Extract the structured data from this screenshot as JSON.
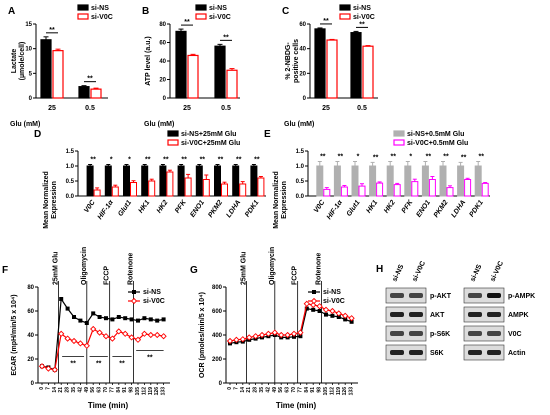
{
  "panels": {
    "A": {
      "label": "A",
      "type": "bar",
      "ylabel_lines": [
        "Lactate",
        "(µmole/cell)"
      ],
      "xlabel": "Glu (mM)",
      "categories": [
        "25",
        "0.5"
      ],
      "ylim": [
        0,
        15
      ],
      "yticks": [
        0,
        5,
        10,
        15
      ],
      "series": [
        {
          "name": "si-NS",
          "values": [
            11.8,
            2.3
          ],
          "err": [
            0.6,
            0.2
          ],
          "color": "#000000"
        },
        {
          "name": "si-V0C",
          "values": [
            9.6,
            1.8
          ],
          "err": [
            0.3,
            0.2
          ],
          "color": "#ff0000"
        }
      ],
      "sig": [
        "**",
        "**"
      ]
    },
    "B": {
      "label": "B",
      "type": "bar",
      "ylabel_lines": [
        "ATP level (a.u.)"
      ],
      "xlabel": "Glu (mM)",
      "categories": [
        "25",
        "0.5"
      ],
      "ylim": [
        0,
        80
      ],
      "yticks": [
        0,
        20,
        40,
        60,
        80
      ],
      "series": [
        {
          "name": "si-NS",
          "values": [
            72,
            56
          ],
          "err": [
            2.5,
            2
          ],
          "color": "#000000"
        },
        {
          "name": "si-V0C",
          "values": [
            46,
            30
          ],
          "err": [
            1.2,
            1.8
          ],
          "color": "#ff0000"
        }
      ],
      "sig": [
        "**",
        "**"
      ]
    },
    "C": {
      "label": "C",
      "type": "bar",
      "ylabel_lines": [
        "% 2-NBDG-",
        "positive cells"
      ],
      "xlabel": "Glu (mM)",
      "categories": [
        "25",
        "0.5"
      ],
      "ylim": [
        0,
        60
      ],
      "yticks": [
        0,
        20,
        40,
        60
      ],
      "series": [
        {
          "name": "si-NS",
          "values": [
            56,
            53
          ],
          "err": [
            0.8,
            1
          ],
          "color": "#000000"
        },
        {
          "name": "si-V0C",
          "values": [
            47,
            42
          ],
          "err": [
            0.5,
            0.5
          ],
          "color": "#ff0000"
        }
      ],
      "sig": [
        "**",
        "**"
      ]
    },
    "D": {
      "label": "D",
      "type": "bar",
      "ylabel_lines": [
        "Mean Normalized",
        "Expression"
      ],
      "categories": [
        "V0C",
        "HIF-1α",
        "Glut1",
        "HK1",
        "HK2",
        "PFK",
        "ENO1",
        "PKM2",
        "LDHA",
        "PDK1"
      ],
      "ylim": [
        0,
        1.5
      ],
      "yticks": [
        "0.0",
        "0.5",
        "1.0",
        "1.5"
      ],
      "series": [
        {
          "name": "si-NS+25mM Glu",
          "values": [
            1,
            1,
            1,
            1,
            1,
            1,
            1,
            1,
            1,
            1
          ],
          "err": [
            0.05,
            0.05,
            0.05,
            0.05,
            0.05,
            0.05,
            0.05,
            0.05,
            0.05,
            0.05
          ],
          "color": "#000000"
        },
        {
          "name": "si-V0C+25mM Glu",
          "values": [
            0.2,
            0.3,
            0.45,
            0.5,
            0.8,
            0.6,
            0.55,
            0.4,
            0.4,
            0.6
          ],
          "err": [
            0.07,
            0.06,
            0.06,
            0.06,
            0.06,
            0.12,
            0.15,
            0.06,
            0.08,
            0.05
          ],
          "color": "#ff0000"
        }
      ],
      "sig": [
        "**",
        "*",
        "*",
        "**",
        "**",
        "**",
        "**",
        "**",
        "**",
        "**"
      ]
    },
    "E": {
      "label": "E",
      "type": "bar",
      "ylabel_lines": [
        "Mean Normalized",
        "Expression"
      ],
      "categories": [
        "V0C",
        "HIF-1α",
        "Glut1",
        "HK1",
        "HK2",
        "PFK",
        "ENO1",
        "PKM2",
        "LDHA",
        "PDK1"
      ],
      "ylim": [
        0,
        1.5
      ],
      "yticks": [
        "0.0",
        "0.5",
        "1.0",
        "1.5"
      ],
      "series": [
        {
          "name": "si-NS+0.5mM Glu",
          "values": [
            1,
            1,
            1,
            1,
            1,
            1,
            1,
            1,
            1,
            1
          ],
          "err": [
            0.15,
            0.15,
            0.15,
            0.12,
            0.15,
            0.15,
            0.15,
            0.15,
            0.12,
            0.15
          ],
          "color": "#b0b0b0"
        },
        {
          "name": "si-V0C+0.5mM Glu",
          "values": [
            0.22,
            0.3,
            0.33,
            0.43,
            0.38,
            0.48,
            0.55,
            0.28,
            0.55,
            0.42
          ],
          "err": [
            0.06,
            0.05,
            0.08,
            0.04,
            0.04,
            0.08,
            0.1,
            0.06,
            0.04,
            0.03
          ],
          "color": "#ff00ff"
        }
      ],
      "sig": [
        "**",
        "**",
        "*",
        "**",
        "**",
        "*",
        "**",
        "**",
        "**",
        "**"
      ]
    },
    "F": {
      "label": "F",
      "type": "line",
      "ylabel": "ECAR (mpH/min/5 x 10⁴)",
      "xlabel": "Time (min)",
      "ylim": [
        0,
        80
      ],
      "yticks": [
        0,
        20,
        40,
        60,
        80
      ],
      "x": [
        0,
        7,
        14,
        21,
        28,
        35,
        42,
        49,
        56,
        63,
        70,
        77,
        84,
        91,
        98,
        105,
        112,
        119,
        126,
        133
      ],
      "injections": [
        "25mM Glu",
        "Oligomycin",
        "FCCP",
        "Rotenone"
      ],
      "injection_x": [
        18,
        49,
        74,
        100
      ],
      "series": [
        {
          "name": "si-NS",
          "color": "#000000",
          "values": [
            14,
            13,
            11,
            70,
            62,
            55,
            52,
            50,
            58,
            55,
            54,
            53,
            55,
            54,
            53,
            52,
            54,
            53,
            52,
            53
          ]
        },
        {
          "name": "si-V0C",
          "color": "#ff0000",
          "values": [
            14,
            12,
            11,
            41,
            37,
            35,
            33,
            31,
            45,
            42,
            39,
            37,
            43,
            41,
            38,
            36,
            41,
            40,
            40,
            39
          ]
        }
      ],
      "sig": [
        "**",
        "**",
        "**",
        "**"
      ]
    },
    "G": {
      "label": "G",
      "type": "line",
      "ylabel": "OCR (pmoles/min/5 x 10⁴)",
      "xlabel": "Time (min)",
      "ylim": [
        0,
        800
      ],
      "yticks": [
        0,
        200,
        400,
        600,
        800
      ],
      "x": [
        0,
        7,
        14,
        21,
        28,
        35,
        42,
        49,
        56,
        63,
        70,
        77,
        84,
        91,
        98,
        105,
        112,
        119,
        126,
        133
      ],
      "injections": [
        "25mM Glu",
        "Oligomycin",
        "FCCP",
        "Rotenone"
      ],
      "injection_x": [
        18,
        49,
        74,
        100
      ],
      "series": [
        {
          "name": "si-NS",
          "color": "#000000",
          "values": [
            330,
            340,
            345,
            360,
            370,
            380,
            390,
            400,
            380,
            380,
            385,
            390,
            620,
            610,
            600,
            570,
            560,
            550,
            530,
            510
          ]
        },
        {
          "name": "si-V0C",
          "color": "#ff0000",
          "values": [
            350,
            360,
            365,
            380,
            390,
            400,
            410,
            420,
            400,
            400,
            410,
            420,
            660,
            650,
            640,
            610,
            600,
            580,
            560,
            540
          ]
        }
      ]
    }
  },
  "blots": {
    "label": "H",
    "left": {
      "columns": [
        "si-NS",
        "si-V0C"
      ],
      "rows": [
        "p-AKT",
        "AKT",
        "p-S6K",
        "S6K"
      ]
    },
    "right": {
      "columns": [
        "si-NS",
        "si-V0C"
      ],
      "rows": [
        "p-AMPK",
        "AMPK",
        "V0C",
        "Actin"
      ]
    }
  }
}
